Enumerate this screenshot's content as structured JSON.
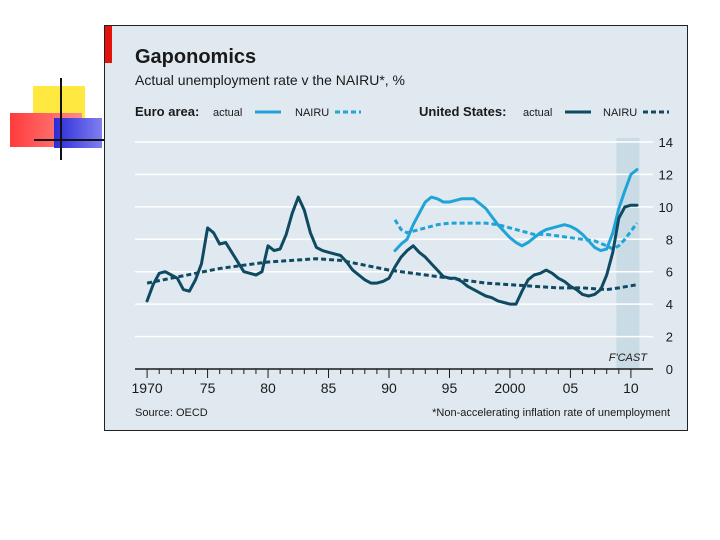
{
  "chart_data": {
    "type": "line",
    "title": "Gaponomics",
    "subtitle": "Actual unemployment rate v the NAIRU*, %",
    "legend": {
      "euro_label": "Euro area:",
      "us_label": "United States:",
      "actual_label": "actual",
      "nairu_label": "NAIRU"
    },
    "x_ticks": [
      {
        "value": 1970,
        "label": "1970"
      },
      {
        "value": 1975,
        "label": "75"
      },
      {
        "value": 1980,
        "label": "80"
      },
      {
        "value": 1985,
        "label": "85"
      },
      {
        "value": 1990,
        "label": "90"
      },
      {
        "value": 1995,
        "label": "95"
      },
      {
        "value": 2000,
        "label": "2000"
      },
      {
        "value": 2005,
        "label": "05"
      },
      {
        "value": 2010,
        "label": "10"
      }
    ],
    "y_ticks": [
      0,
      2,
      4,
      6,
      8,
      10,
      12,
      14
    ],
    "xlim": [
      1969,
      2011
    ],
    "ylim": [
      0,
      14
    ],
    "forecast": {
      "start": 2008.8,
      "end": 2010.7,
      "label": "F'CAST"
    },
    "source": "Source: OECD",
    "footnote": "*Non-accelerating inflation rate of unemployment",
    "colors": {
      "euro": "#20a4d8",
      "us": "#0f4a62",
      "band": "#c9dbe5",
      "grid": "#ffffff",
      "accent": "#e3120b"
    },
    "series": [
      {
        "name": "Euro area actual",
        "color": "#20a4d8",
        "dashed": false,
        "x": [
          1990.5,
          1991,
          1991.5,
          1992,
          1992.5,
          1993,
          1993.5,
          1994,
          1994.5,
          1995,
          1995.5,
          1996,
          1996.5,
          1997,
          1997.5,
          1998,
          1998.5,
          1999,
          1999.5,
          2000,
          2000.5,
          2001,
          2001.5,
          2002,
          2002.5,
          2003,
          2003.5,
          2004,
          2004.5,
          2005,
          2005.5,
          2006,
          2006.5,
          2007,
          2007.5,
          2008,
          2008.5,
          2009,
          2009.5,
          2010,
          2010.5
        ],
        "y": [
          7.3,
          7.7,
          8.0,
          8.9,
          9.6,
          10.3,
          10.6,
          10.5,
          10.3,
          10.3,
          10.4,
          10.5,
          10.5,
          10.5,
          10.2,
          9.9,
          9.4,
          8.9,
          8.5,
          8.1,
          7.8,
          7.6,
          7.8,
          8.1,
          8.4,
          8.6,
          8.7,
          8.8,
          8.9,
          8.8,
          8.6,
          8.3,
          7.9,
          7.5,
          7.3,
          7.4,
          8.4,
          9.9,
          11.0,
          12.0,
          12.3
        ]
      },
      {
        "name": "Euro area NAIRU",
        "color": "#20a4d8",
        "dashed": true,
        "x": [
          1990.5,
          1991,
          1991.5,
          1992,
          1993,
          1994,
          1995,
          1996,
          1997,
          1998,
          1999,
          2000,
          2001,
          2002,
          2003,
          2004,
          2005,
          2006,
          2007,
          2008,
          2008.5,
          2009,
          2009.5,
          2010,
          2010.5
        ],
        "y": [
          9.2,
          8.6,
          8.4,
          8.5,
          8.7,
          8.9,
          9.0,
          9.0,
          9.0,
          9.0,
          8.9,
          8.7,
          8.5,
          8.3,
          8.3,
          8.2,
          8.1,
          8.0,
          7.9,
          7.6,
          7.4,
          7.6,
          8.0,
          8.5,
          9.0
        ]
      },
      {
        "name": "United States actual",
        "color": "#0f4a62",
        "dashed": false,
        "x": [
          1970,
          1970.5,
          1971,
          1971.5,
          1972,
          1972.5,
          1973,
          1973.5,
          1974,
          1974.5,
          1975,
          1975.5,
          1976,
          1976.5,
          1977,
          1977.5,
          1978,
          1978.5,
          1979,
          1979.5,
          1980,
          1980.5,
          1981,
          1981.5,
          1982,
          1982.5,
          1983,
          1983.5,
          1984,
          1984.5,
          1985,
          1985.5,
          1986,
          1986.5,
          1987,
          1987.5,
          1988,
          1988.5,
          1989,
          1989.5,
          1990,
          1990.5,
          1991,
          1991.5,
          1992,
          1992.5,
          1993,
          1993.5,
          1994,
          1994.5,
          1995,
          1995.5,
          1996,
          1996.5,
          1997,
          1997.5,
          1998,
          1998.5,
          1999,
          1999.5,
          2000,
          2000.5,
          2001,
          2001.5,
          2002,
          2002.5,
          2003,
          2003.5,
          2004,
          2004.5,
          2005,
          2005.5,
          2006,
          2006.5,
          2007,
          2007.5,
          2008,
          2008.5,
          2009,
          2009.5,
          2010,
          2010.5
        ],
        "y": [
          4.2,
          5.2,
          5.9,
          6.0,
          5.8,
          5.6,
          4.9,
          4.8,
          5.5,
          6.5,
          8.7,
          8.4,
          7.7,
          7.8,
          7.2,
          6.6,
          6.0,
          5.9,
          5.8,
          6.0,
          7.6,
          7.3,
          7.4,
          8.3,
          9.6,
          10.6,
          9.8,
          8.4,
          7.5,
          7.3,
          7.2,
          7.1,
          7.0,
          6.6,
          6.1,
          5.8,
          5.5,
          5.3,
          5.3,
          5.4,
          5.6,
          6.3,
          6.9,
          7.3,
          7.6,
          7.2,
          6.9,
          6.5,
          6.1,
          5.7,
          5.6,
          5.6,
          5.4,
          5.1,
          4.9,
          4.7,
          4.5,
          4.4,
          4.2,
          4.1,
          4.0,
          4.0,
          4.8,
          5.5,
          5.8,
          5.9,
          6.1,
          5.9,
          5.6,
          5.4,
          5.1,
          4.9,
          4.6,
          4.5,
          4.6,
          4.9,
          5.8,
          7.2,
          9.3,
          10.0,
          10.1,
          10.1
        ]
      },
      {
        "name": "United States NAIRU",
        "color": "#0f4a62",
        "dashed": true,
        "x": [
          1970,
          1972,
          1974,
          1976,
          1978,
          1980,
          1982,
          1984,
          1986,
          1988,
          1990,
          1992,
          1994,
          1996,
          1998,
          2000,
          2002,
          2004,
          2006,
          2008,
          2009,
          2010.5
        ],
        "y": [
          5.3,
          5.6,
          5.9,
          6.2,
          6.4,
          6.6,
          6.7,
          6.8,
          6.7,
          6.4,
          6.1,
          5.9,
          5.7,
          5.5,
          5.3,
          5.2,
          5.1,
          5.0,
          5.0,
          4.9,
          5.0,
          5.2
        ]
      }
    ]
  }
}
